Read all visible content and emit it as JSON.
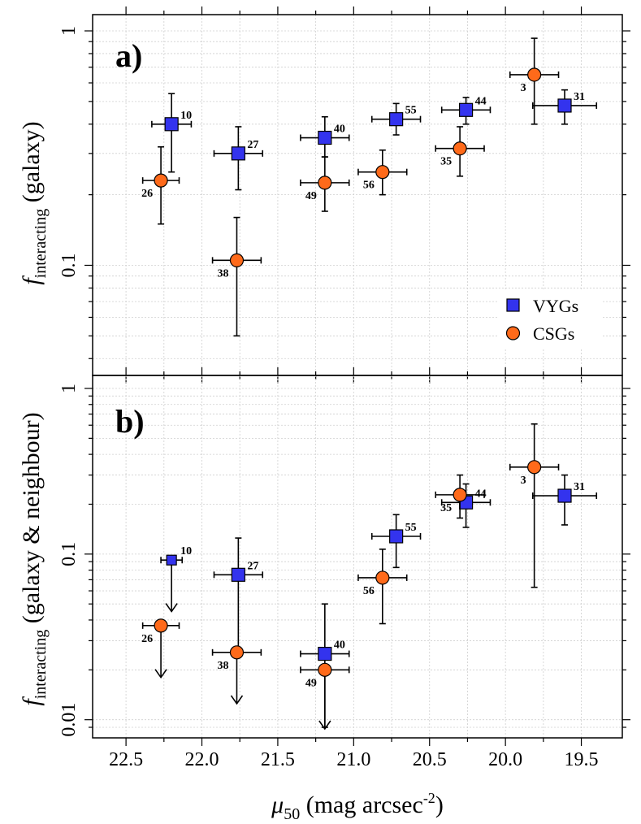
{
  "chart_data": [
    {
      "panel": "a)",
      "type": "scatter",
      "ylabel_main": "f",
      "ylabel_sub": "interacting",
      "ylabel_rest": " (galaxy)",
      "xlim": [
        22.72,
        19.23
      ],
      "ylim": [
        0.035,
        1.0
      ],
      "yscale": "log",
      "ytick_labels": [
        "0.1",
        "1"
      ],
      "ytick_values": [
        0.1,
        1
      ],
      "legend": [
        "VYGs",
        "CSGs"
      ],
      "legend_position": "bottom-right",
      "series": [
        {
          "name": "VYGs",
          "marker": "square",
          "color": "#3333ee",
          "points": [
            {
              "x": 22.2,
              "y": 0.4,
              "xlo": 22.33,
              "xhi": 22.07,
              "ylo": 0.25,
              "yhi": 0.54,
              "label": "10",
              "upper_limit": false
            },
            {
              "x": 21.76,
              "y": 0.3,
              "xlo": 21.92,
              "xhi": 21.6,
              "ylo": 0.21,
              "yhi": 0.39,
              "label": "27",
              "upper_limit": false
            },
            {
              "x": 21.19,
              "y": 0.35,
              "xlo": 21.35,
              "xhi": 21.03,
              "ylo": 0.29,
              "yhi": 0.43,
              "label": "40",
              "upper_limit": false
            },
            {
              "x": 20.72,
              "y": 0.42,
              "xlo": 20.88,
              "xhi": 20.56,
              "ylo": 0.36,
              "yhi": 0.49,
              "label": "55",
              "upper_limit": false
            },
            {
              "x": 20.26,
              "y": 0.46,
              "xlo": 20.42,
              "xhi": 20.1,
              "ylo": 0.4,
              "yhi": 0.52,
              "label": "44",
              "upper_limit": false
            },
            {
              "x": 19.61,
              "y": 0.48,
              "xlo": 19.82,
              "xhi": 19.4,
              "ylo": 0.4,
              "yhi": 0.56,
              "label": "31",
              "upper_limit": false
            }
          ]
        },
        {
          "name": "CSGs",
          "marker": "circle",
          "color": "#ff6a1a",
          "points": [
            {
              "x": 22.27,
              "y": 0.23,
              "xlo": 22.39,
              "xhi": 22.15,
              "ylo": 0.15,
              "yhi": 0.32,
              "label": "26",
              "upper_limit": false
            },
            {
              "x": 21.77,
              "y": 0.105,
              "xlo": 21.93,
              "xhi": 21.61,
              "ylo": 0.05,
              "yhi": 0.16,
              "label": "38",
              "upper_limit": false
            },
            {
              "x": 21.19,
              "y": 0.225,
              "xlo": 21.35,
              "xhi": 21.03,
              "ylo": 0.17,
              "yhi": 0.29,
              "label": "49",
              "upper_limit": false
            },
            {
              "x": 20.81,
              "y": 0.25,
              "xlo": 20.97,
              "xhi": 20.65,
              "ylo": 0.2,
              "yhi": 0.31,
              "label": "56",
              "upper_limit": false
            },
            {
              "x": 20.3,
              "y": 0.315,
              "xlo": 20.46,
              "xhi": 20.14,
              "ylo": 0.24,
              "yhi": 0.39,
              "label": "35",
              "upper_limit": false
            },
            {
              "x": 19.81,
              "y": 0.65,
              "xlo": 19.97,
              "xhi": 19.65,
              "ylo": 0.4,
              "yhi": 0.93,
              "label": "3",
              "upper_limit": false
            }
          ]
        }
      ]
    },
    {
      "panel": "b)",
      "type": "scatter",
      "ylabel_main": "f",
      "ylabel_sub": "interacting",
      "ylabel_rest": " (galaxy & neighbour)",
      "xlabel_main": "μ",
      "xlabel_sub": "50",
      "xlabel_rest": " (mag arcsec",
      "xlabel_sup": "-2",
      "xlabel_end": ")",
      "xlim": [
        22.72,
        19.23
      ],
      "ylim": [
        0.0088,
        1.0
      ],
      "yscale": "log",
      "xtick_labels": [
        "22.5",
        "22.0",
        "21.5",
        "21.0",
        "20.5",
        "20.0",
        "19.5"
      ],
      "xtick_values": [
        22.5,
        22.0,
        21.5,
        21.0,
        20.5,
        20.0,
        19.5
      ],
      "ytick_labels": [
        "0.01",
        "0.1",
        "1"
      ],
      "ytick_values": [
        0.01,
        0.1,
        1
      ],
      "series": [
        {
          "name": "VYGs",
          "marker": "square",
          "color": "#3333ee",
          "points": [
            {
              "x": 22.2,
              "y": 0.092,
              "xlo": 22.27,
              "xhi": 22.13,
              "ylo": 0.045,
              "yhi": 0.092,
              "label": "10",
              "upper_limit": true
            },
            {
              "x": 21.76,
              "y": 0.075,
              "xlo": 21.92,
              "xhi": 21.6,
              "ylo": 0.025,
              "yhi": 0.125,
              "label": "27",
              "upper_limit": false
            },
            {
              "x": 21.19,
              "y": 0.025,
              "xlo": 21.35,
              "xhi": 21.03,
              "ylo": 0.009,
              "yhi": 0.05,
              "label": "40",
              "upper_limit": false
            },
            {
              "x": 20.72,
              "y": 0.128,
              "xlo": 20.88,
              "xhi": 20.56,
              "ylo": 0.083,
              "yhi": 0.173,
              "label": "55",
              "upper_limit": false
            },
            {
              "x": 20.26,
              "y": 0.205,
              "xlo": 20.42,
              "xhi": 20.1,
              "ylo": 0.145,
              "yhi": 0.265,
              "label": "44",
              "upper_limit": false
            },
            {
              "x": 19.61,
              "y": 0.225,
              "xlo": 19.82,
              "xhi": 19.4,
              "ylo": 0.15,
              "yhi": 0.3,
              "label": "31",
              "upper_limit": false
            }
          ]
        },
        {
          "name": "CSGs",
          "marker": "circle",
          "color": "#ff6a1a",
          "points": [
            {
              "x": 22.27,
              "y": 0.037,
              "xlo": 22.39,
              "xhi": 22.15,
              "ylo": 0.018,
              "yhi": 0.037,
              "label": "26",
              "upper_limit": true
            },
            {
              "x": 21.77,
              "y": 0.0255,
              "xlo": 21.93,
              "xhi": 21.61,
              "ylo": 0.0125,
              "yhi": 0.0255,
              "label": "38",
              "upper_limit": true
            },
            {
              "x": 21.19,
              "y": 0.02,
              "xlo": 21.35,
              "xhi": 21.03,
              "ylo": 0.0088,
              "yhi": 0.02,
              "label": "49",
              "upper_limit": true
            },
            {
              "x": 20.81,
              "y": 0.072,
              "xlo": 20.97,
              "xhi": 20.65,
              "ylo": 0.038,
              "yhi": 0.107,
              "label": "56",
              "upper_limit": false
            },
            {
              "x": 20.3,
              "y": 0.228,
              "xlo": 20.46,
              "xhi": 20.14,
              "ylo": 0.165,
              "yhi": 0.3,
              "label": "35",
              "upper_limit": false
            },
            {
              "x": 19.81,
              "y": 0.335,
              "xlo": 19.97,
              "xhi": 19.65,
              "ylo": 0.063,
              "yhi": 0.61,
              "label": "3",
              "upper_limit": false
            }
          ]
        }
      ]
    }
  ]
}
